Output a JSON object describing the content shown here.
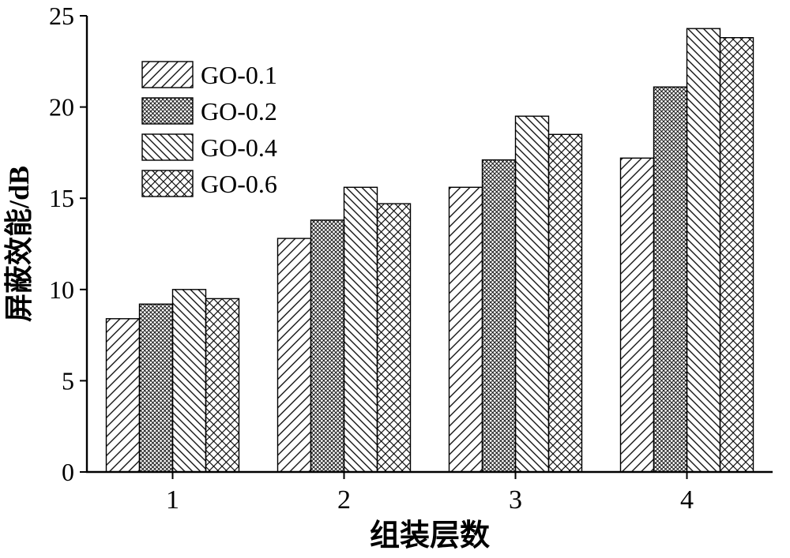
{
  "figure": {
    "background": "#ffffff"
  },
  "chart_data": {
    "type": "bar",
    "title": "",
    "xlabel": "组装层数",
    "ylabel": "屏蔽效能/dB",
    "categories": [
      "1",
      "2",
      "3",
      "4"
    ],
    "series": [
      {
        "name": "GO-0.1",
        "hatch": "diagonal-forward",
        "values": [
          8.4,
          12.8,
          15.6,
          17.2
        ]
      },
      {
        "name": "GO-0.2",
        "hatch": "dense-crosshatch",
        "values": [
          9.2,
          13.8,
          17.1,
          21.1
        ]
      },
      {
        "name": "GO-0.4",
        "hatch": "diagonal-backward",
        "values": [
          10.0,
          15.6,
          19.5,
          24.3
        ]
      },
      {
        "name": "GO-0.6",
        "hatch": "crosshatch",
        "values": [
          9.5,
          14.7,
          18.5,
          23.8
        ]
      }
    ],
    "ylim": [
      0,
      25
    ],
    "yticks": [
      0,
      5,
      10,
      15,
      20,
      25
    ],
    "grid": false,
    "legend_position": "upper-left-inside",
    "bar_fill": "#ffffff",
    "edge_color": "#000000"
  }
}
